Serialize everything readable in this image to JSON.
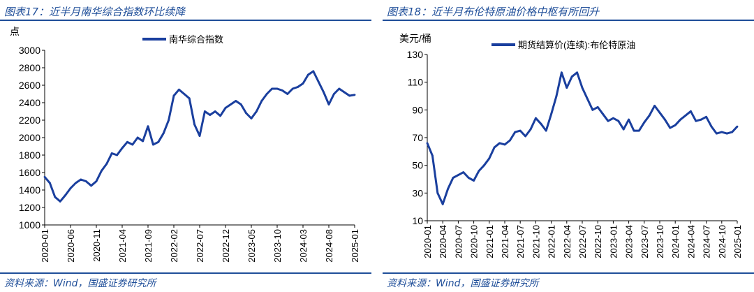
{
  "left": {
    "title": "图表17：近半月南华综合指数环比续降",
    "source": "资料来源：Wind，国盛证券研究所",
    "chart_data": {
      "type": "line",
      "ylabel": "点",
      "ylim": [
        1000,
        3000
      ],
      "yticks": [
        1000,
        1200,
        1400,
        1600,
        1800,
        2000,
        2200,
        2400,
        2600,
        2800,
        3000
      ],
      "xticks": [
        "2020-01",
        "2020-06",
        "2020-11",
        "2021-04",
        "2021-09",
        "2022-02",
        "2022-07",
        "2022-12",
        "2023-05",
        "2023-10",
        "2024-03",
        "2024-08",
        "2025-01"
      ],
      "legend": "南华综合指数",
      "series": [
        {
          "name": "南华综合指数",
          "x": [
            "2020-01",
            "2020-02",
            "2020-03",
            "2020-04",
            "2020-05",
            "2020-06",
            "2020-07",
            "2020-08",
            "2020-09",
            "2020-10",
            "2020-11",
            "2020-12",
            "2021-01",
            "2021-02",
            "2021-03",
            "2021-04",
            "2021-05",
            "2021-06",
            "2021-07",
            "2021-08",
            "2021-09",
            "2021-10",
            "2021-11",
            "2021-12",
            "2022-01",
            "2022-02",
            "2022-03",
            "2022-04",
            "2022-05",
            "2022-06",
            "2022-07",
            "2022-08",
            "2022-09",
            "2022-10",
            "2022-11",
            "2022-12",
            "2023-01",
            "2023-02",
            "2023-03",
            "2023-04",
            "2023-05",
            "2023-06",
            "2023-07",
            "2023-08",
            "2023-09",
            "2023-10",
            "2023-11",
            "2023-12",
            "2024-01",
            "2024-02",
            "2024-03",
            "2024-04",
            "2024-05",
            "2024-06",
            "2024-07",
            "2024-08",
            "2024-09",
            "2024-10",
            "2024-11",
            "2024-12",
            "2025-01"
          ],
          "values": [
            1550,
            1480,
            1320,
            1270,
            1340,
            1420,
            1480,
            1520,
            1500,
            1450,
            1500,
            1620,
            1700,
            1820,
            1800,
            1880,
            1950,
            1920,
            2000,
            1960,
            2130,
            1920,
            1950,
            2050,
            2200,
            2480,
            2550,
            2500,
            2450,
            2150,
            2020,
            2300,
            2260,
            2300,
            2250,
            2340,
            2380,
            2420,
            2380,
            2280,
            2220,
            2300,
            2420,
            2500,
            2560,
            2560,
            2540,
            2500,
            2560,
            2580,
            2620,
            2720,
            2760,
            2640,
            2520,
            2380,
            2500,
            2560,
            2520,
            2480,
            2490
          ]
        }
      ]
    }
  },
  "right": {
    "title": "图表18：近半月布伦特原油价格中枢有所回升",
    "source": "资料来源：Wind，国盛证券研究所",
    "chart_data": {
      "type": "line",
      "ylabel": "美元/桶",
      "ylim": [
        10,
        130
      ],
      "yticks": [
        10,
        30,
        50,
        70,
        90,
        110,
        130
      ],
      "xticks": [
        "2020-01",
        "2020-04",
        "2020-07",
        "2020-10",
        "2021-01",
        "2021-04",
        "2021-07",
        "2021-10",
        "2022-01",
        "2022-04",
        "2022-07",
        "2022-10",
        "2023-01",
        "2023-04",
        "2023-07",
        "2023-10",
        "2024-01",
        "2024-04",
        "2024-07",
        "2024-10",
        "2025-01"
      ],
      "legend": "期货结算价(连续):布伦特原油",
      "series": [
        {
          "name": "期货结算价(连续):布伦特原油",
          "x": [
            "2020-01",
            "2020-02",
            "2020-03",
            "2020-04",
            "2020-05",
            "2020-06",
            "2020-07",
            "2020-08",
            "2020-09",
            "2020-10",
            "2020-11",
            "2020-12",
            "2021-01",
            "2021-02",
            "2021-03",
            "2021-04",
            "2021-05",
            "2021-06",
            "2021-07",
            "2021-08",
            "2021-09",
            "2021-10",
            "2021-11",
            "2021-12",
            "2022-01",
            "2022-02",
            "2022-03",
            "2022-04",
            "2022-05",
            "2022-06",
            "2022-07",
            "2022-08",
            "2022-09",
            "2022-10",
            "2022-11",
            "2022-12",
            "2023-01",
            "2023-02",
            "2023-03",
            "2023-04",
            "2023-05",
            "2023-06",
            "2023-07",
            "2023-08",
            "2023-09",
            "2023-10",
            "2023-11",
            "2023-12",
            "2024-01",
            "2024-02",
            "2024-03",
            "2024-04",
            "2024-05",
            "2024-06",
            "2024-07",
            "2024-08",
            "2024-09",
            "2024-10",
            "2024-11",
            "2024-12",
            "2025-01"
          ],
          "values": [
            66,
            57,
            30,
            22,
            33,
            41,
            43,
            45,
            41,
            39,
            46,
            50,
            55,
            63,
            66,
            65,
            68,
            74,
            75,
            71,
            76,
            84,
            80,
            75,
            87,
            100,
            117,
            106,
            114,
            117,
            106,
            98,
            90,
            92,
            87,
            82,
            84,
            82,
            76,
            83,
            75,
            75,
            81,
            86,
            93,
            88,
            83,
            77,
            79,
            83,
            86,
            89,
            82,
            83,
            85,
            78,
            73,
            74,
            73,
            74,
            78
          ]
        }
      ]
    }
  }
}
